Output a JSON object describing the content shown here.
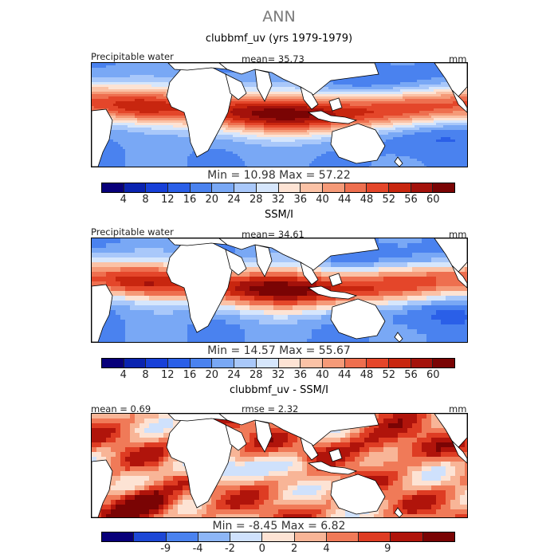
{
  "figure": {
    "title": "ANN",
    "panels": [
      {
        "title": "clubbmf_uv (yrs 1979-1979)",
        "left_label": "Precipitable water",
        "mean_text": "mean=   35.73",
        "units": "mm",
        "minmax": "Min =   10.98  Max =   57.22",
        "tick_labels": [
          "4",
          "8",
          "12",
          "16",
          "20",
          "24",
          "28",
          "32",
          "36",
          "40",
          "44",
          "48",
          "52",
          "56",
          "60"
        ],
        "mask": "land"
      },
      {
        "title": "SSM/I",
        "left_label": "Precipitable water",
        "mean_text": "mean=   34.61",
        "units": "mm",
        "minmax": "Min =   14.57  Max =   55.67",
        "tick_labels": [
          "4",
          "8",
          "12",
          "16",
          "20",
          "24",
          "28",
          "32",
          "36",
          "40",
          "44",
          "48",
          "52",
          "56",
          "60"
        ],
        "mask": "land-blocky"
      },
      {
        "title": "clubbmf_uv - SSM/I",
        "left_label": "mean =   0.69",
        "mean_text": "rmse =    2.32",
        "units": "mm",
        "minmax": "Min =  -8.45  Max =    6.82",
        "tick_labels": [
          "-9",
          "-4",
          "-2",
          "0",
          "2",
          "4",
          "9"
        ],
        "mask": "land-blocky"
      }
    ]
  },
  "colors": {
    "field_scale": [
      "#08007a",
      "#0a23b0",
      "#1740d8",
      "#2a5fe8",
      "#4a82ef",
      "#79a8f5",
      "#a9c8fa",
      "#d6e6fc",
      "#fde3d4",
      "#fbc2a6",
      "#f59a78",
      "#ee6f4f",
      "#e4462a",
      "#c8260f",
      "#a4120b",
      "#7a0404"
    ],
    "diff_scale": [
      "#08007a",
      "#1d48d6",
      "#4a82ef",
      "#8db6f7",
      "#cfe1fc",
      "#fde3d4",
      "#f8b597",
      "#f07a58",
      "#de3c23",
      "#b0140b",
      "#7a0404"
    ],
    "land": "#ffffff",
    "coast": "#000000"
  },
  "chart_data": [
    {
      "type": "heatmap",
      "title": "clubbmf_uv (yrs 1979-1979)",
      "variable": "Precipitable water",
      "units": "mm",
      "mean": 35.73,
      "min": 10.98,
      "max": 57.22,
      "levels": [
        4,
        8,
        12,
        16,
        20,
        24,
        28,
        32,
        36,
        40,
        44,
        48,
        52,
        56,
        60
      ]
    },
    {
      "type": "heatmap",
      "title": "SSM/I",
      "variable": "Precipitable water",
      "units": "mm",
      "mean": 34.61,
      "min": 14.57,
      "max": 55.67,
      "levels": [
        4,
        8,
        12,
        16,
        20,
        24,
        28,
        32,
        36,
        40,
        44,
        48,
        52,
        56,
        60
      ]
    },
    {
      "type": "heatmap",
      "title": "clubbmf_uv - SSM/I",
      "units": "mm",
      "mean": 0.69,
      "rmse": 2.32,
      "min": -8.45,
      "max": 6.82,
      "levels": [
        -9,
        -4,
        -2,
        0,
        2,
        4,
        9
      ]
    }
  ]
}
